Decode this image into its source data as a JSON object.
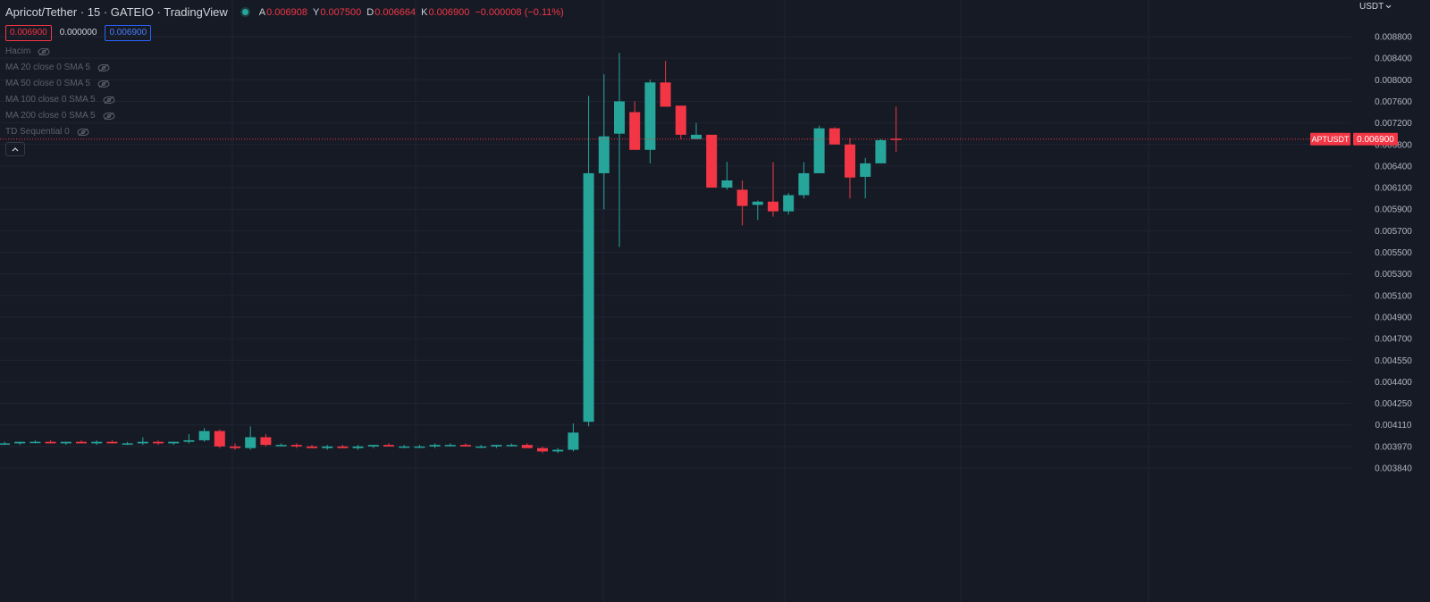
{
  "header": {
    "title": "Apricot/Tether · 15 · GATEIO · TradingView",
    "ohlc": [
      {
        "key": "A",
        "value": "0.006908"
      },
      {
        "key": "Y",
        "value": "0.007500"
      },
      {
        "key": "D",
        "value": "0.006664"
      },
      {
        "key": "K",
        "value": "0.006900"
      }
    ],
    "change": "−0.000008 (−0.11%)",
    "bid": "0.006900",
    "spread": "0.000000",
    "ask": "0.006900",
    "indicators": [
      "Hacim",
      "MA 20 close 0 SMA 5",
      "MA 50 close 0 SMA 5",
      "MA 100 close 0 SMA 5",
      "MA 200 close 0 SMA 5",
      "TD Sequential 0"
    ]
  },
  "currency_label": "USDT",
  "icons": {
    "visibility": "eye-off-icon",
    "collapse": "chevron-up-icon",
    "currency_menu": "chevron-down-icon"
  },
  "colors": {
    "background": "#161a25",
    "up": "#26a69a",
    "down": "#f23645",
    "grid": "#1f2433",
    "axis_text": "#b2b5be"
  },
  "chart_data": {
    "type": "candlestick",
    "symbol": "APTUSDT",
    "last_price": 0.0069,
    "last_price_label": "0.006900",
    "y_ticks": [
      "0.008800",
      "0.008400",
      "0.008000",
      "0.007600",
      "0.007200",
      "0.006800",
      "0.006400",
      "0.006100",
      "0.005900",
      "0.005700",
      "0.005500",
      "0.005300",
      "0.005100",
      "0.004900",
      "0.004700",
      "0.004550",
      "0.004400",
      "0.004250",
      "0.004110",
      "0.003970",
      "0.003840"
    ],
    "candles": [
      {
        "o": 0.00399,
        "h": 0.004,
        "l": 0.00398,
        "c": 0.00399
      },
      {
        "o": 0.00399,
        "h": 0.004,
        "l": 0.00398,
        "c": 0.004
      },
      {
        "o": 0.004,
        "h": 0.00401,
        "l": 0.00399,
        "c": 0.004
      },
      {
        "o": 0.004,
        "h": 0.00401,
        "l": 0.00399,
        "c": 0.00399
      },
      {
        "o": 0.00399,
        "h": 0.004,
        "l": 0.00398,
        "c": 0.004
      },
      {
        "o": 0.004,
        "h": 0.00401,
        "l": 0.00399,
        "c": 0.00399
      },
      {
        "o": 0.00399,
        "h": 0.00401,
        "l": 0.00398,
        "c": 0.004
      },
      {
        "o": 0.004,
        "h": 0.00401,
        "l": 0.00399,
        "c": 0.00399
      },
      {
        "o": 0.00399,
        "h": 0.004,
        "l": 0.00398,
        "c": 0.00399
      },
      {
        "o": 0.00399,
        "h": 0.00403,
        "l": 0.00398,
        "c": 0.004
      },
      {
        "o": 0.004,
        "h": 0.00401,
        "l": 0.00398,
        "c": 0.00399
      },
      {
        "o": 0.00399,
        "h": 0.004,
        "l": 0.00398,
        "c": 0.004
      },
      {
        "o": 0.004,
        "h": 0.00405,
        "l": 0.00399,
        "c": 0.00401
      },
      {
        "o": 0.00401,
        "h": 0.00409,
        "l": 0.004,
        "c": 0.00407
      },
      {
        "o": 0.00407,
        "h": 0.00408,
        "l": 0.00396,
        "c": 0.00397
      },
      {
        "o": 0.00397,
        "h": 0.00399,
        "l": 0.00395,
        "c": 0.00396
      },
      {
        "o": 0.00396,
        "h": 0.0041,
        "l": 0.00395,
        "c": 0.00403
      },
      {
        "o": 0.00403,
        "h": 0.00405,
        "l": 0.00397,
        "c": 0.00398
      },
      {
        "o": 0.00398,
        "h": 0.00399,
        "l": 0.00397,
        "c": 0.00398
      },
      {
        "o": 0.00398,
        "h": 0.00399,
        "l": 0.00396,
        "c": 0.00397
      },
      {
        "o": 0.00397,
        "h": 0.00398,
        "l": 0.00396,
        "c": 0.00396
      },
      {
        "o": 0.00396,
        "h": 0.00398,
        "l": 0.00395,
        "c": 0.00397
      },
      {
        "o": 0.00397,
        "h": 0.00398,
        "l": 0.00396,
        "c": 0.00396
      },
      {
        "o": 0.00396,
        "h": 0.00398,
        "l": 0.00395,
        "c": 0.00397
      },
      {
        "o": 0.00397,
        "h": 0.00398,
        "l": 0.00396,
        "c": 0.00398
      },
      {
        "o": 0.00398,
        "h": 0.00399,
        "l": 0.00397,
        "c": 0.00397
      },
      {
        "o": 0.00397,
        "h": 0.00398,
        "l": 0.00396,
        "c": 0.00397
      },
      {
        "o": 0.00397,
        "h": 0.00398,
        "l": 0.00396,
        "c": 0.00397
      },
      {
        "o": 0.00397,
        "h": 0.00399,
        "l": 0.00396,
        "c": 0.00398
      },
      {
        "o": 0.00398,
        "h": 0.00399,
        "l": 0.00397,
        "c": 0.00398
      },
      {
        "o": 0.00398,
        "h": 0.00399,
        "l": 0.00397,
        "c": 0.00397
      },
      {
        "o": 0.00397,
        "h": 0.00398,
        "l": 0.00396,
        "c": 0.00397
      },
      {
        "o": 0.00397,
        "h": 0.00398,
        "l": 0.00396,
        "c": 0.00398
      },
      {
        "o": 0.00398,
        "h": 0.00399,
        "l": 0.00397,
        "c": 0.00398
      },
      {
        "o": 0.00398,
        "h": 0.00399,
        "l": 0.00396,
        "c": 0.00396
      },
      {
        "o": 0.00396,
        "h": 0.00397,
        "l": 0.00393,
        "c": 0.00394
      },
      {
        "o": 0.00394,
        "h": 0.00396,
        "l": 0.00393,
        "c": 0.00395
      },
      {
        "o": 0.00395,
        "h": 0.00412,
        "l": 0.00394,
        "c": 0.00406
      },
      {
        "o": 0.00413,
        "h": 0.0077,
        "l": 0.0041,
        "c": 0.0063
      },
      {
        "o": 0.0063,
        "h": 0.0081,
        "l": 0.0059,
        "c": 0.00695
      },
      {
        "o": 0.007,
        "h": 0.0085,
        "l": 0.00555,
        "c": 0.0076
      },
      {
        "o": 0.0074,
        "h": 0.0076,
        "l": 0.0067,
        "c": 0.0067
      },
      {
        "o": 0.0067,
        "h": 0.008,
        "l": 0.00645,
        "c": 0.00795
      },
      {
        "o": 0.00795,
        "h": 0.00835,
        "l": 0.0075,
        "c": 0.0075
      },
      {
        "o": 0.00752,
        "h": 0.00752,
        "l": 0.0069,
        "c": 0.00698
      },
      {
        "o": 0.0069,
        "h": 0.0072,
        "l": 0.0069,
        "c": 0.00698
      },
      {
        "o": 0.00698,
        "h": 0.00698,
        "l": 0.0061,
        "c": 0.0061
      },
      {
        "o": 0.0061,
        "h": 0.00648,
        "l": 0.00608,
        "c": 0.0062
      },
      {
        "o": 0.00608,
        "h": 0.0062,
        "l": 0.00575,
        "c": 0.00593
      },
      {
        "o": 0.00594,
        "h": 0.00598,
        "l": 0.0058,
        "c": 0.00597
      },
      {
        "o": 0.00597,
        "h": 0.00647,
        "l": 0.00583,
        "c": 0.00588
      },
      {
        "o": 0.00588,
        "h": 0.00605,
        "l": 0.00585,
        "c": 0.00603
      },
      {
        "o": 0.00603,
        "h": 0.00647,
        "l": 0.006,
        "c": 0.0063
      },
      {
        "o": 0.0063,
        "h": 0.00715,
        "l": 0.0063,
        "c": 0.0071
      },
      {
        "o": 0.0071,
        "h": 0.00712,
        "l": 0.0068,
        "c": 0.0068
      },
      {
        "o": 0.0068,
        "h": 0.00692,
        "l": 0.006,
        "c": 0.00624
      },
      {
        "o": 0.00625,
        "h": 0.00655,
        "l": 0.006,
        "c": 0.00645
      },
      {
        "o": 0.00645,
        "h": 0.0069,
        "l": 0.00645,
        "c": 0.00688
      },
      {
        "o": 0.006908,
        "h": 0.0075,
        "l": 0.006664,
        "c": 0.0069
      }
    ]
  }
}
